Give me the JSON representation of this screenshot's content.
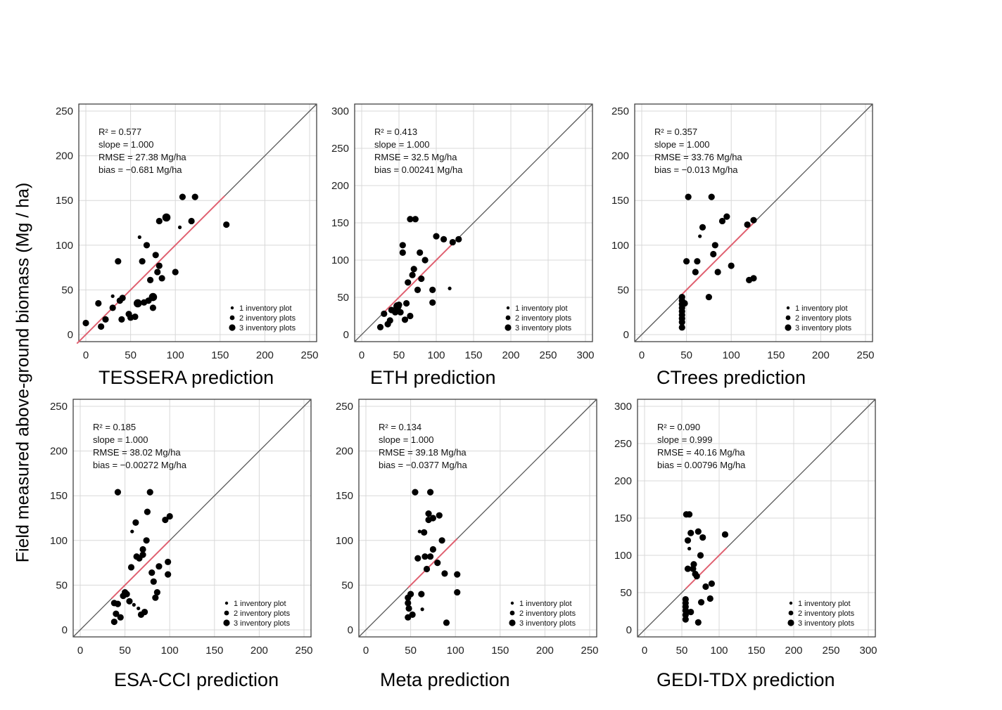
{
  "ylabel": "Field measured  above-ground biomass (Mg / ha)",
  "legend": [
    "1 inventory plot",
    "2 inventory plots",
    "3 inventory plots"
  ],
  "colors": {
    "points": "#000000",
    "identity_line": "#555555",
    "fit_line": "#e06070",
    "grid": "#d8d8d8"
  },
  "chart_data": [
    {
      "type": "scatter",
      "xlabel": "TESSERA prediction",
      "lim": [
        0,
        250
      ],
      "ticks": [
        0,
        50,
        100,
        150,
        200,
        250
      ],
      "stats": [
        "R² = 0.577",
        "slope = 1.000",
        "RMSE = 27.38 Mg/ha",
        "bias = −0.681 Mg/ha"
      ],
      "fit_range": [
        -10,
        155
      ],
      "points": [
        [
          0,
          13,
          2
        ],
        [
          17,
          9,
          2
        ],
        [
          14,
          35,
          2
        ],
        [
          22,
          17,
          2
        ],
        [
          30,
          30,
          2
        ],
        [
          30,
          43,
          1
        ],
        [
          36,
          82,
          2
        ],
        [
          38,
          38,
          2
        ],
        [
          41,
          41,
          2
        ],
        [
          40,
          17,
          2
        ],
        [
          48,
          23,
          2
        ],
        [
          50,
          19,
          2
        ],
        [
          55,
          20,
          2
        ],
        [
          58,
          35,
          3
        ],
        [
          60,
          109,
          1
        ],
        [
          63,
          82,
          2
        ],
        [
          65,
          36,
          2
        ],
        [
          68,
          100,
          2
        ],
        [
          70,
          38,
          2
        ],
        [
          72,
          61,
          2
        ],
        [
          75,
          42,
          3
        ],
        [
          75,
          30,
          2
        ],
        [
          78,
          89,
          2
        ],
        [
          80,
          70,
          2
        ],
        [
          82,
          77,
          2
        ],
        [
          82,
          127,
          2
        ],
        [
          85,
          63,
          2
        ],
        [
          90,
          131,
          3
        ],
        [
          100,
          70,
          2
        ],
        [
          105,
          120,
          1
        ],
        [
          108,
          154,
          2
        ],
        [
          118,
          127,
          2
        ],
        [
          122,
          154,
          2
        ],
        [
          157,
          123,
          2
        ]
      ]
    },
    {
      "type": "scatter",
      "xlabel": "ETH prediction",
      "lim": [
        0,
        300
      ],
      "ticks": [
        0,
        50,
        100,
        150,
        200,
        250,
        300
      ],
      "stats": [
        "R² = 0.413",
        "slope = 1.000",
        "RMSE = 32.5 Mg/ha",
        "bias = 0.00241 Mg/ha"
      ],
      "fit_range": [
        30,
        125
      ],
      "points": [
        [
          25,
          10,
          2
        ],
        [
          30,
          28,
          2
        ],
        [
          35,
          14,
          2
        ],
        [
          38,
          19,
          2
        ],
        [
          40,
          33,
          2
        ],
        [
          45,
          30,
          2
        ],
        [
          48,
          38,
          3
        ],
        [
          50,
          40,
          2
        ],
        [
          52,
          30,
          2
        ],
        [
          55,
          120,
          2
        ],
        [
          55,
          110,
          2
        ],
        [
          58,
          20,
          2
        ],
        [
          60,
          42,
          2
        ],
        [
          62,
          70,
          2
        ],
        [
          65,
          25,
          2
        ],
        [
          65,
          155,
          2
        ],
        [
          68,
          80,
          2
        ],
        [
          70,
          88,
          2
        ],
        [
          72,
          155,
          2
        ],
        [
          75,
          60,
          2
        ],
        [
          78,
          110,
          2
        ],
        [
          80,
          75,
          2
        ],
        [
          85,
          100,
          2
        ],
        [
          95,
          60,
          2
        ],
        [
          95,
          43,
          2
        ],
        [
          100,
          132,
          2
        ],
        [
          110,
          128,
          2
        ],
        [
          118,
          62,
          1
        ],
        [
          122,
          124,
          2
        ],
        [
          130,
          128,
          2
        ]
      ]
    },
    {
      "type": "scatter",
      "xlabel": "CTrees prediction",
      "lim": [
        0,
        250
      ],
      "ticks": [
        0,
        50,
        100,
        150,
        200,
        250
      ],
      "stats": [
        "R² = 0.357",
        "slope = 1.000",
        "RMSE = 33.76 Mg/ha",
        "bias = −0.013 Mg/ha"
      ],
      "fit_range": [
        45,
        125
      ],
      "points": [
        [
          45,
          8,
          2
        ],
        [
          45,
          14,
          2
        ],
        [
          45,
          18,
          2
        ],
        [
          45,
          22,
          2
        ],
        [
          45,
          26,
          2
        ],
        [
          45,
          30,
          2
        ],
        [
          45,
          34,
          2
        ],
        [
          45,
          38,
          2
        ],
        [
          45,
          42,
          2
        ],
        [
          48,
          35,
          2
        ],
        [
          50,
          82,
          2
        ],
        [
          52,
          154,
          2
        ],
        [
          60,
          70,
          2
        ],
        [
          62,
          82,
          2
        ],
        [
          65,
          110,
          1
        ],
        [
          68,
          120,
          2
        ],
        [
          75,
          42,
          2
        ],
        [
          78,
          154,
          2
        ],
        [
          80,
          90,
          2
        ],
        [
          82,
          100,
          2
        ],
        [
          85,
          70,
          2
        ],
        [
          90,
          127,
          2
        ],
        [
          95,
          132,
          2
        ],
        [
          100,
          77,
          2
        ],
        [
          118,
          123,
          2
        ],
        [
          120,
          61,
          2
        ],
        [
          125,
          63,
          2
        ],
        [
          125,
          128,
          2
        ]
      ]
    },
    {
      "type": "scatter",
      "xlabel": "ESA-CCI prediction",
      "lim": [
        0,
        250
      ],
      "ticks": [
        0,
        50,
        100,
        150,
        200,
        250
      ],
      "stats": [
        "R² = 0.185",
        "slope = 1.000",
        "RMSE = 38.02 Mg/ha",
        "bias = −0.00272 Mg/ha"
      ],
      "fit_range": [
        35,
        100
      ],
      "points": [
        [
          38,
          30,
          2
        ],
        [
          38,
          9,
          2
        ],
        [
          40,
          18,
          2
        ],
        [
          42,
          29,
          2
        ],
        [
          42,
          154,
          2
        ],
        [
          45,
          14,
          2
        ],
        [
          48,
          38,
          2
        ],
        [
          50,
          42,
          2
        ],
        [
          52,
          40,
          2
        ],
        [
          55,
          32,
          2
        ],
        [
          57,
          70,
          2
        ],
        [
          58,
          110,
          1
        ],
        [
          60,
          28,
          1
        ],
        [
          62,
          120,
          2
        ],
        [
          63,
          82,
          2
        ],
        [
          65,
          24,
          1
        ],
        [
          66,
          80,
          2
        ],
        [
          68,
          17,
          2
        ],
        [
          70,
          90,
          2
        ],
        [
          70,
          84,
          2
        ],
        [
          72,
          20,
          2
        ],
        [
          74,
          100,
          2
        ],
        [
          75,
          132,
          2
        ],
        [
          78,
          154,
          2
        ],
        [
          80,
          64,
          2
        ],
        [
          82,
          54,
          2
        ],
        [
          84,
          36,
          2
        ],
        [
          86,
          42,
          2
        ],
        [
          88,
          71,
          2
        ],
        [
          95,
          123,
          2
        ],
        [
          98,
          76,
          2
        ],
        [
          98,
          62,
          2
        ],
        [
          100,
          127,
          2
        ]
      ]
    },
    {
      "type": "scatter",
      "xlabel": "Meta prediction",
      "lim": [
        0,
        250
      ],
      "ticks": [
        0,
        50,
        100,
        150,
        200,
        250
      ],
      "stats": [
        "R² = 0.134",
        "slope = 1.000",
        "RMSE = 39.18 Mg/ha",
        "bias = −0.0377 Mg/ha"
      ],
      "fit_range": [
        47,
        102
      ],
      "points": [
        [
          47,
          14,
          2
        ],
        [
          47,
          36,
          2
        ],
        [
          47,
          30,
          2
        ],
        [
          48,
          24,
          2
        ],
        [
          50,
          40,
          2
        ],
        [
          52,
          17,
          2
        ],
        [
          55,
          154,
          2
        ],
        [
          58,
          80,
          2
        ],
        [
          60,
          110,
          1
        ],
        [
          62,
          40,
          2
        ],
        [
          63,
          23,
          1
        ],
        [
          65,
          109,
          2
        ],
        [
          66,
          82,
          2
        ],
        [
          68,
          68,
          2
        ],
        [
          70,
          123,
          2
        ],
        [
          70,
          130,
          2
        ],
        [
          72,
          154,
          2
        ],
        [
          72,
          82,
          2
        ],
        [
          75,
          125,
          2
        ],
        [
          75,
          90,
          2
        ],
        [
          80,
          75,
          2
        ],
        [
          82,
          128,
          2
        ],
        [
          85,
          100,
          2
        ],
        [
          88,
          63,
          2
        ],
        [
          90,
          8,
          2
        ],
        [
          102,
          62,
          2
        ],
        [
          102,
          42,
          2
        ]
      ]
    },
    {
      "type": "scatter",
      "xlabel": "GEDI-TDX prediction",
      "lim": [
        0,
        300
      ],
      "ticks": [
        0,
        50,
        100,
        150,
        200,
        250,
        300
      ],
      "stats": [
        "R² = 0.090",
        "slope = 0.999",
        "RMSE = 40.16 Mg/ha",
        "bias = 0.00796 Mg/ha"
      ],
      "fit_range": [
        55,
        110
      ],
      "points": [
        [
          55,
          14,
          2
        ],
        [
          55,
          20,
          2
        ],
        [
          55,
          26,
          2
        ],
        [
          55,
          31,
          2
        ],
        [
          55,
          36,
          2
        ],
        [
          55,
          41,
          2
        ],
        [
          56,
          155,
          2
        ],
        [
          58,
          120,
          2
        ],
        [
          58,
          82,
          2
        ],
        [
          60,
          109,
          1
        ],
        [
          60,
          155,
          2
        ],
        [
          62,
          24,
          2
        ],
        [
          62,
          130,
          2
        ],
        [
          65,
          82,
          2
        ],
        [
          66,
          88,
          2
        ],
        [
          68,
          75,
          2
        ],
        [
          70,
          72,
          2
        ],
        [
          72,
          10,
          2
        ],
        [
          72,
          132,
          2
        ],
        [
          75,
          100,
          2
        ],
        [
          76,
          37,
          2
        ],
        [
          78,
          124,
          2
        ],
        [
          82,
          58,
          2
        ],
        [
          88,
          42,
          2
        ],
        [
          90,
          62,
          2
        ],
        [
          108,
          128,
          2
        ]
      ]
    }
  ]
}
